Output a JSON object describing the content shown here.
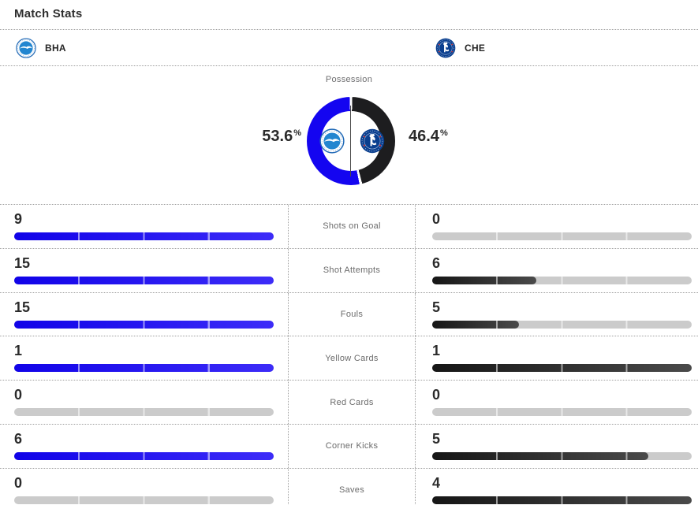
{
  "page": {
    "title": "Match Stats"
  },
  "teams": {
    "home": {
      "abbr": "BHA"
    },
    "away": {
      "abbr": "CHE"
    }
  },
  "possession": {
    "label": "Possession",
    "home_pct": "53.6",
    "away_pct": "46.4",
    "percent_sign": "%"
  },
  "colors": {
    "home_bar_start": "#1103e8",
    "home_bar_end": "#3d2cf8",
    "away_bar_start": "#161616",
    "away_bar_end": "#4a4a4a",
    "home_donut": "#1405f0",
    "away_donut": "#1d1d1f",
    "track_gray": "#cbcbcb",
    "dotted_border": "#9e9e9e",
    "brighton_blue": "#2386d0",
    "chelsea_blue": "#0a3f8f"
  },
  "stats": {
    "rows": [
      {
        "label": "Shots on Goal",
        "home": {
          "value": "9",
          "pct": 100,
          "fill": "blue"
        },
        "away": {
          "value": "0",
          "pct": 0,
          "fill": "dark"
        }
      },
      {
        "label": "Shot Attempts",
        "home": {
          "value": "15",
          "pct": 100,
          "fill": "blue"
        },
        "away": {
          "value": "6",
          "pct": 40,
          "fill": "dark"
        }
      },
      {
        "label": "Fouls",
        "home": {
          "value": "15",
          "pct": 100,
          "fill": "blue"
        },
        "away": {
          "value": "5",
          "pct": 33.3,
          "fill": "dark"
        }
      },
      {
        "label": "Yellow Cards",
        "home": {
          "value": "1",
          "pct": 100,
          "fill": "blue"
        },
        "away": {
          "value": "1",
          "pct": 100,
          "fill": "dark"
        }
      },
      {
        "label": "Red Cards",
        "home": {
          "value": "0",
          "pct": 0,
          "fill": "blue"
        },
        "away": {
          "value": "0",
          "pct": 0,
          "fill": "dark"
        }
      },
      {
        "label": "Corner Kicks",
        "home": {
          "value": "6",
          "pct": 100,
          "fill": "blue"
        },
        "away": {
          "value": "5",
          "pct": 83.3,
          "fill": "dark"
        }
      },
      {
        "label": "Saves",
        "home": {
          "value": "0",
          "pct": 0,
          "fill": "blue"
        },
        "away": {
          "value": "4",
          "pct": 100,
          "fill": "dark"
        }
      }
    ]
  },
  "chart_data": [
    {
      "type": "pie",
      "style": "donut",
      "title": "Possession",
      "labels": [
        "BHA",
        "CHE"
      ],
      "values": [
        53.6,
        46.4
      ],
      "colors": [
        "#1405f0",
        "#1d1d1f"
      ],
      "legend_position": "sides"
    },
    {
      "type": "bar",
      "title": "Match Stats",
      "categories": [
        "Shots on Goal",
        "Shot Attempts",
        "Fouls",
        "Yellow Cards",
        "Red Cards",
        "Corner Kicks",
        "Saves"
      ],
      "series": [
        {
          "name": "BHA",
          "values": [
            9,
            15,
            15,
            1,
            0,
            6,
            0
          ]
        },
        {
          "name": "CHE",
          "values": [
            0,
            6,
            5,
            1,
            0,
            5,
            4
          ]
        }
      ],
      "layout": "mirrored horizontal bars, each bar scaled to per-row maximum, grid off"
    }
  ]
}
